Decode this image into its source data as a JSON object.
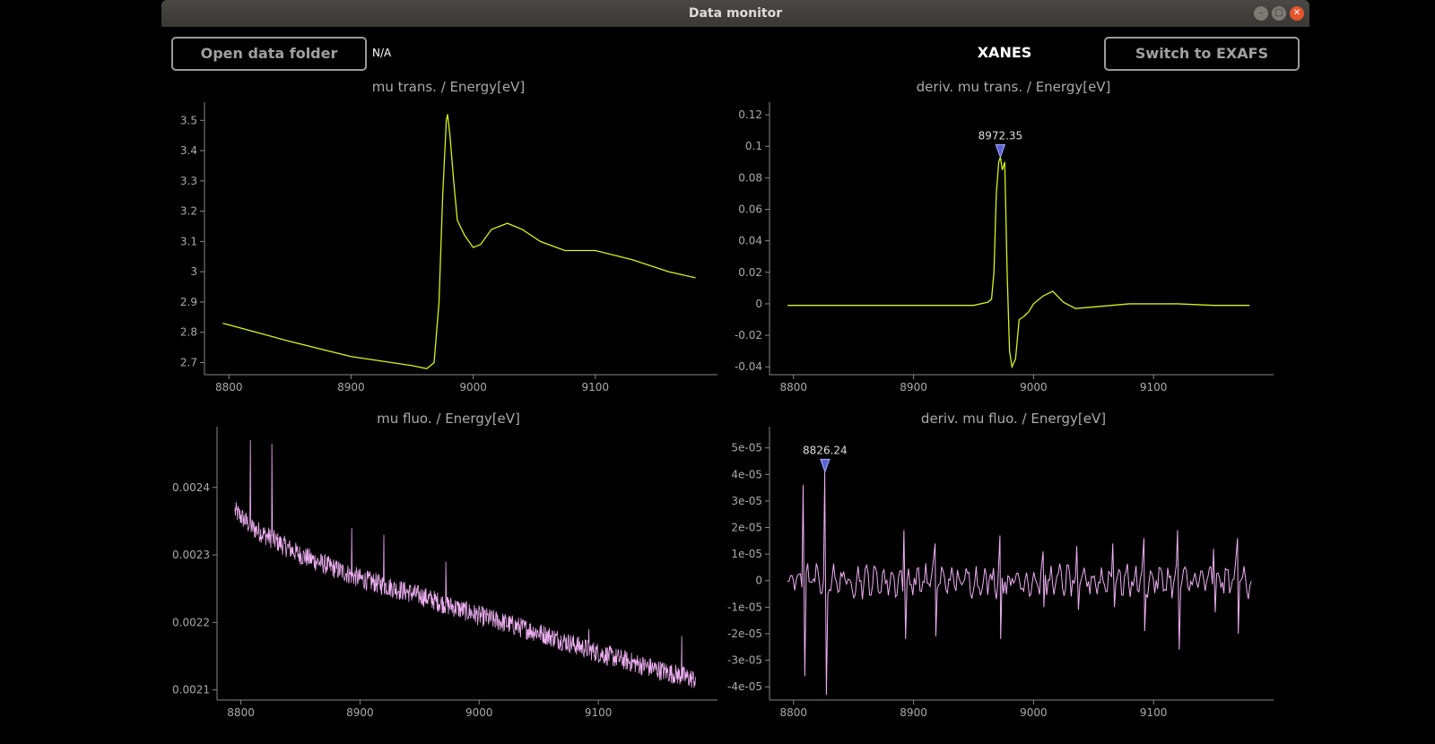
{
  "window": {
    "title": "Data monitor"
  },
  "toolbar": {
    "open_label": "Open data folder",
    "folder_value": "N/A",
    "mode_label": "XANES",
    "switch_label": "Switch to EXAFS"
  },
  "colors": {
    "trans": "#d4f31c",
    "fluo": "#eeb0f2",
    "marker": "#5a63d6"
  },
  "chart_data": [
    {
      "type": "line",
      "title": "mu trans. / Energy[eV]",
      "xlim": [
        8780,
        9200
      ],
      "ylim": [
        2.66,
        3.56
      ],
      "x_ticks": [
        8800,
        8900,
        9000,
        9100
      ],
      "y_ticks": [
        2.7,
        2.8,
        2.9,
        3,
        3.1,
        3.2,
        3.3,
        3.4,
        3.5
      ],
      "x": [
        8795,
        8850,
        8900,
        8950,
        8962,
        8968,
        8972,
        8975,
        8978,
        8979,
        8981,
        8984,
        8987,
        8993,
        9000,
        9006,
        9015,
        9028,
        9040,
        9055,
        9075,
        9100,
        9130,
        9160,
        9182
      ],
      "y": [
        2.83,
        2.77,
        2.72,
        2.69,
        2.68,
        2.7,
        2.9,
        3.25,
        3.5,
        3.52,
        3.45,
        3.3,
        3.17,
        3.12,
        3.08,
        3.09,
        3.14,
        3.16,
        3.14,
        3.1,
        3.07,
        3.07,
        3.04,
        3.0,
        2.98
      ],
      "series": [
        {
          "color": "#d4f31c"
        }
      ]
    },
    {
      "type": "line",
      "title": "deriv. mu trans. / Energy[eV]",
      "xlim": [
        8780,
        9200
      ],
      "ylim": [
        -0.045,
        0.128
      ],
      "x_ticks": [
        8800,
        8900,
        9000,
        9100
      ],
      "y_ticks": [
        -0.04,
        -0.02,
        0,
        0.02,
        0.04,
        0.06,
        0.08,
        0.1,
        0.12
      ],
      "x": [
        8795,
        8850,
        8900,
        8950,
        8962,
        8965,
        8967,
        8969,
        8971,
        8972.35,
        8974,
        8976,
        8978,
        8980,
        8982,
        8985,
        8988,
        8992,
        8996,
        9000,
        9008,
        9016,
        9025,
        9035,
        9050,
        9080,
        9120,
        9150,
        9180
      ],
      "y": [
        -0.001,
        -0.001,
        -0.001,
        -0.001,
        0.001,
        0.003,
        0.02,
        0.07,
        0.09,
        0.093,
        0.085,
        0.09,
        0.02,
        -0.03,
        -0.04,
        -0.035,
        -0.01,
        -0.008,
        -0.005,
        0,
        0.005,
        0.008,
        0.001,
        -0.003,
        -0.002,
        0,
        0,
        -0.001,
        -0.001
      ],
      "series": [
        {
          "color": "#d4f31c"
        }
      ],
      "marker": {
        "x": 8972.35,
        "y": 0.093,
        "label": "8972.35"
      }
    },
    {
      "type": "line",
      "title": "mu fluo. / Energy[eV]",
      "xlim": [
        8780,
        9200
      ],
      "ylim": [
        0.002085,
        0.00249
      ],
      "x_ticks": [
        8800,
        8900,
        9000,
        9100
      ],
      "y_ticks": [
        0.0021,
        0.0022,
        0.0023,
        0.0024
      ],
      "x_range": [
        8795,
        9182
      ],
      "trend": [
        [
          8795,
          0.002365
        ],
        [
          8810,
          0.00234
        ],
        [
          8850,
          0.0023
        ],
        [
          8900,
          0.002265
        ],
        [
          8950,
          0.00224
        ],
        [
          9000,
          0.00221
        ],
        [
          9050,
          0.002185
        ],
        [
          9100,
          0.002155
        ],
        [
          9150,
          0.00213
        ],
        [
          9182,
          0.002115
        ]
      ],
      "spikes": [
        [
          8808,
          0.00247
        ],
        [
          8826,
          0.002465
        ],
        [
          8893,
          0.00234
        ],
        [
          8920,
          0.00233
        ],
        [
          8972,
          0.00229
        ],
        [
          9092,
          0.00219
        ],
        [
          9170,
          0.00218
        ]
      ],
      "series": [
        {
          "color": "#eeb0f2"
        }
      ]
    },
    {
      "type": "line",
      "title": "deriv. mu fluo. / Energy[eV]",
      "xlim": [
        8780,
        9200
      ],
      "ylim": [
        -4.5e-05,
        5.8e-05
      ],
      "x_ticks": [
        8800,
        8900,
        9000,
        9100
      ],
      "y_ticks": [
        -4e-05,
        -3e-05,
        -2e-05,
        -1e-05,
        0,
        1e-05,
        2e-05,
        3e-05,
        4e-05,
        5e-05
      ],
      "y_tick_labels": [
        "-4e-05",
        "-3e-05",
        "-2e-05",
        "-1e-05",
        "0",
        "1e-05",
        "2e-05",
        "3e-05",
        "4e-05",
        "5e-05"
      ],
      "x_range": [
        8795,
        9182
      ],
      "spikes": [
        [
          8808,
          3.6e-05,
          -3.6e-05
        ],
        [
          8826,
          4.1e-05,
          -4.3e-05
        ],
        [
          8892,
          1.9e-05,
          -2.2e-05
        ],
        [
          8918,
          1.4e-05,
          -2.1e-05
        ],
        [
          8972,
          1.7e-05,
          -2.2e-05
        ],
        [
          9008,
          1.1e-05,
          -1e-05
        ],
        [
          9036,
          1.3e-05,
          -1.1e-05
        ],
        [
          9066,
          1.4e-05,
          -1e-05
        ],
        [
          9092,
          1.6e-05,
          -1.9e-05
        ],
        [
          9120,
          1.9e-05,
          -2.6e-05
        ],
        [
          9150,
          1.2e-05,
          -1.2e-05
        ],
        [
          9170,
          1.6e-05,
          -2e-05
        ]
      ],
      "series": [
        {
          "color": "#eeb0f2"
        }
      ],
      "marker": {
        "x": 8826.24,
        "y": 4.1e-05,
        "label": "8826.24"
      }
    }
  ]
}
